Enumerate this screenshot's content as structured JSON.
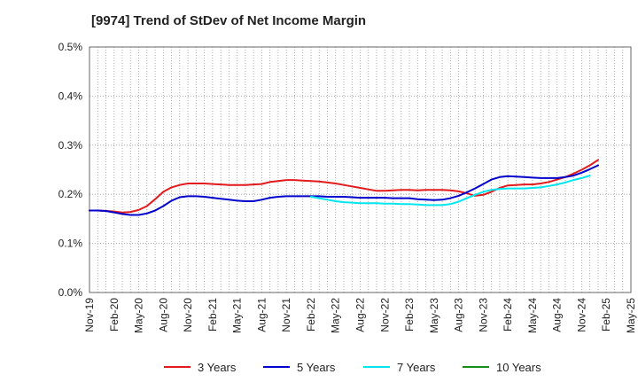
{
  "chart_data": {
    "type": "line",
    "title": "[9974]  Trend of StDev of Net Income Margin",
    "xlabel": "",
    "ylabel": "",
    "ylim": [
      0,
      0.5
    ],
    "grid": true,
    "legend_position": "bottom",
    "x_ticks": [
      "Nov-19",
      "Feb-20",
      "May-20",
      "Aug-20",
      "Nov-20",
      "Feb-21",
      "May-21",
      "Aug-21",
      "Nov-21",
      "Feb-22",
      "May-22",
      "Aug-22",
      "Nov-22",
      "Feb-23",
      "May-23",
      "Aug-23",
      "Nov-23",
      "Feb-24",
      "May-24",
      "Aug-24",
      "Nov-24",
      "Feb-25",
      "May-25"
    ],
    "y_ticks": [
      "0.0%",
      "0.1%",
      "0.2%",
      "0.3%",
      "0.4%",
      "0.5%"
    ],
    "y_tick_values": [
      0,
      0.1,
      0.2,
      0.3,
      0.4,
      0.5
    ],
    "series": [
      {
        "name": "3 Years",
        "color": "#e31a1c",
        "start": "Nov-19",
        "values": [
          0.167,
          0.167,
          0.166,
          0.165,
          0.163,
          0.164,
          0.168,
          0.176,
          0.19,
          0.205,
          0.214,
          0.219,
          0.222,
          0.222,
          0.222,
          0.221,
          0.22,
          0.219,
          0.219,
          0.219,
          0.22,
          0.221,
          0.225,
          0.227,
          0.229,
          0.229,
          0.228,
          0.227,
          0.226,
          0.224,
          0.222,
          0.219,
          0.216,
          0.213,
          0.21,
          0.207,
          0.207,
          0.208,
          0.209,
          0.209,
          0.208,
          0.209,
          0.209,
          0.209,
          0.208,
          0.206,
          0.202,
          0.197,
          0.199,
          0.205,
          0.213,
          0.218,
          0.219,
          0.22,
          0.22,
          0.222,
          0.225,
          0.23,
          0.235,
          0.242,
          0.25,
          0.259,
          0.27
        ]
      },
      {
        "name": "5 Years",
        "color": "#0000cc",
        "start": "Nov-19",
        "values": [
          0.167,
          0.167,
          0.166,
          0.163,
          0.16,
          0.158,
          0.158,
          0.161,
          0.167,
          0.176,
          0.187,
          0.194,
          0.196,
          0.196,
          0.195,
          0.193,
          0.191,
          0.189,
          0.187,
          0.186,
          0.186,
          0.189,
          0.193,
          0.195,
          0.196,
          0.196,
          0.196,
          0.196,
          0.196,
          0.195,
          0.195,
          0.195,
          0.194,
          0.193,
          0.193,
          0.193,
          0.193,
          0.192,
          0.192,
          0.192,
          0.19,
          0.189,
          0.188,
          0.189,
          0.192,
          0.197,
          0.204,
          0.212,
          0.221,
          0.23,
          0.235,
          0.237,
          0.236,
          0.235,
          0.234,
          0.233,
          0.233,
          0.233,
          0.235,
          0.238,
          0.244,
          0.251,
          0.259
        ]
      },
      {
        "name": "7 Years",
        "color": "#00e5ee",
        "start": "Feb-22",
        "values": [
          0.195,
          0.192,
          0.189,
          0.186,
          0.184,
          0.183,
          0.182,
          0.182,
          0.182,
          0.181,
          0.181,
          0.18,
          0.18,
          0.179,
          0.178,
          0.178,
          0.178,
          0.18,
          0.185,
          0.192,
          0.199,
          0.205,
          0.209,
          0.211,
          0.212,
          0.212,
          0.212,
          0.213,
          0.214,
          0.217,
          0.22,
          0.224,
          0.229,
          0.233,
          0.238
        ]
      },
      {
        "name": "10 Years",
        "color": "#1a8c1a",
        "start": "Nov-24",
        "values": []
      }
    ]
  }
}
